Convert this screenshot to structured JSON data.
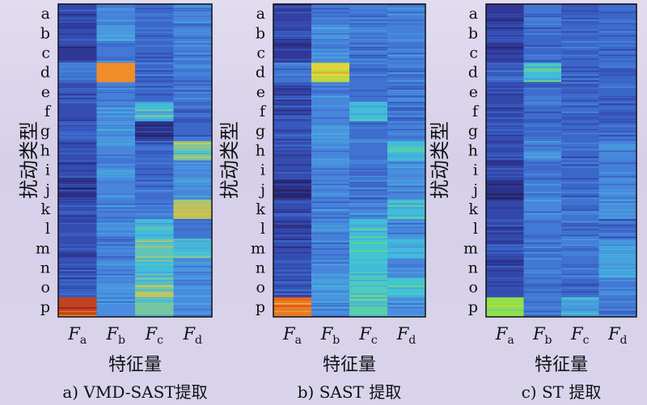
{
  "chart_data": [
    {
      "type": "heatmap",
      "caption": "a) VMD-SAST提取",
      "xlabel": "特征量",
      "ylabel": "扰动类型",
      "x_categories": [
        {
          "main": "F",
          "sub": "a"
        },
        {
          "main": "F",
          "sub": "b"
        },
        {
          "main": "F",
          "sub": "c"
        },
        {
          "main": "F",
          "sub": "d"
        }
      ],
      "y_categories": [
        "a",
        "b",
        "c",
        "d",
        "e",
        "f",
        "g",
        "h",
        "i",
        "j",
        "k",
        "l",
        "m",
        "n",
        "o",
        "p"
      ],
      "colormap": [
        "#1f1a4c",
        "#2f3594",
        "#3a62c8",
        "#4b8fe0",
        "#3fc4d8",
        "#e8c63a",
        "#f08a28",
        "#a41c1c"
      ],
      "values": [
        [
          0.2,
          0.38,
          0.3,
          0.4
        ],
        [
          0.22,
          0.45,
          0.3,
          0.38
        ],
        [
          0.15,
          0.36,
          0.3,
          0.38
        ],
        [
          0.35,
          0.85,
          0.3,
          0.35
        ],
        [
          0.22,
          0.38,
          0.3,
          0.36
        ],
        [
          0.22,
          0.4,
          0.55,
          0.3
        ],
        [
          0.28,
          0.45,
          0.12,
          0.3
        ],
        [
          0.22,
          0.4,
          0.3,
          0.62
        ],
        [
          0.22,
          0.42,
          0.3,
          0.4
        ],
        [
          0.14,
          0.4,
          0.32,
          0.4
        ],
        [
          0.22,
          0.38,
          0.35,
          0.66
        ],
        [
          0.22,
          0.38,
          0.55,
          0.35
        ],
        [
          0.22,
          0.38,
          0.6,
          0.58
        ],
        [
          0.24,
          0.4,
          0.55,
          0.4
        ],
        [
          0.25,
          0.44,
          0.62,
          0.42
        ],
        [
          0.95,
          0.42,
          0.62,
          0.42
        ]
      ]
    },
    {
      "type": "heatmap",
      "caption": "b) SAST 提取",
      "xlabel": "特征量",
      "ylabel": "扰动类型",
      "x_categories": [
        {
          "main": "F",
          "sub": "a"
        },
        {
          "main": "F",
          "sub": "b"
        },
        {
          "main": "F",
          "sub": "c"
        },
        {
          "main": "F",
          "sub": "d"
        }
      ],
      "y_categories": [
        "a",
        "b",
        "c",
        "d",
        "e",
        "f",
        "g",
        "h",
        "i",
        "j",
        "k",
        "l",
        "m",
        "n",
        "o",
        "p"
      ],
      "colormap": [
        "#1f1a4c",
        "#2f3594",
        "#3a62c8",
        "#4b8fe0",
        "#3fc4d8",
        "#8fe04a",
        "#e6d23a",
        "#e84a1c"
      ],
      "values": [
        [
          0.18,
          0.36,
          0.34,
          0.38
        ],
        [
          0.22,
          0.42,
          0.34,
          0.38
        ],
        [
          0.15,
          0.4,
          0.34,
          0.38
        ],
        [
          0.35,
          0.85,
          0.34,
          0.36
        ],
        [
          0.22,
          0.4,
          0.34,
          0.36
        ],
        [
          0.2,
          0.4,
          0.55,
          0.34
        ],
        [
          0.26,
          0.44,
          0.32,
          0.34
        ],
        [
          0.22,
          0.4,
          0.34,
          0.55
        ],
        [
          0.22,
          0.4,
          0.34,
          0.4
        ],
        [
          0.12,
          0.4,
          0.34,
          0.4
        ],
        [
          0.22,
          0.38,
          0.4,
          0.55
        ],
        [
          0.2,
          0.38,
          0.55,
          0.4
        ],
        [
          0.22,
          0.38,
          0.58,
          0.55
        ],
        [
          0.22,
          0.4,
          0.55,
          0.4
        ],
        [
          0.24,
          0.44,
          0.6,
          0.58
        ],
        [
          0.95,
          0.42,
          0.62,
          0.42
        ]
      ]
    },
    {
      "type": "heatmap",
      "caption": "c) ST 提取",
      "xlabel": "特征量",
      "ylabel": "扰动类型",
      "x_categories": [
        {
          "main": "F",
          "sub": "a"
        },
        {
          "main": "F",
          "sub": "b"
        },
        {
          "main": "F",
          "sub": "c"
        },
        {
          "main": "F",
          "sub": "d"
        }
      ],
      "y_categories": [
        "a",
        "b",
        "c",
        "d",
        "e",
        "f",
        "g",
        "h",
        "i",
        "j",
        "k",
        "l",
        "m",
        "n",
        "o",
        "p"
      ],
      "colormap": [
        "#1f1a4c",
        "#2f3594",
        "#3a62c8",
        "#4b8fe0",
        "#3fc4d8",
        "#8fe04a",
        "#e6d23a",
        "#e84a1c"
      ],
      "values": [
        [
          0.15,
          0.35,
          0.3,
          0.3
        ],
        [
          0.2,
          0.3,
          0.3,
          0.32
        ],
        [
          0.15,
          0.3,
          0.3,
          0.3
        ],
        [
          0.3,
          0.55,
          0.3,
          0.3
        ],
        [
          0.2,
          0.32,
          0.3,
          0.3
        ],
        [
          0.2,
          0.32,
          0.32,
          0.28
        ],
        [
          0.22,
          0.3,
          0.3,
          0.3
        ],
        [
          0.2,
          0.4,
          0.3,
          0.4
        ],
        [
          0.2,
          0.34,
          0.3,
          0.38
        ],
        [
          0.12,
          0.36,
          0.3,
          0.4
        ],
        [
          0.2,
          0.4,
          0.34,
          0.42
        ],
        [
          0.2,
          0.36,
          0.34,
          0.3
        ],
        [
          0.22,
          0.36,
          0.34,
          0.45
        ],
        [
          0.2,
          0.36,
          0.34,
          0.48
        ],
        [
          0.22,
          0.36,
          0.3,
          0.36
        ],
        [
          0.72,
          0.36,
          0.5,
          0.36
        ]
      ]
    }
  ]
}
